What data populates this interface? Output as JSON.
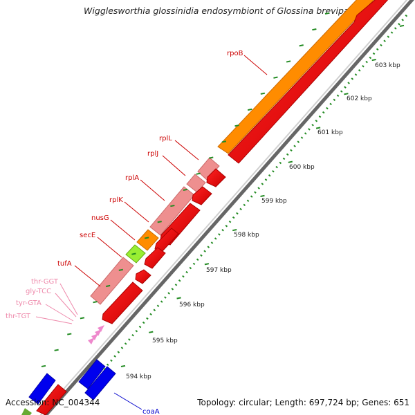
{
  "title": "Wigglesworthia glossinidia endosymbiont of Glossina brevipal...",
  "footer": {
    "accession_label": "Accession:",
    "accession": "NC_004344",
    "topology_label": "Topology:",
    "topology": "circular",
    "length_label": "Length:",
    "length": "697,724 bp",
    "genes_label": "Genes:",
    "genes": "651"
  },
  "scale_labels": [
    "594 kbp",
    "595 kbp",
    "596 kbp",
    "597 kbp",
    "598 kbp",
    "599 kbp",
    "600 kbp",
    "601 kbp",
    "602 kbp",
    "603 kbp"
  ],
  "gene_labels": [
    {
      "name": "rpoB",
      "color": "#cc0000"
    },
    {
      "name": "rplL",
      "color": "#cc0000"
    },
    {
      "name": "rplJ",
      "color": "#cc0000"
    },
    {
      "name": "rplA",
      "color": "#cc0000"
    },
    {
      "name": "rplK",
      "color": "#cc0000"
    },
    {
      "name": "nusG",
      "color": "#cc0000"
    },
    {
      "name": "secE",
      "color": "#cc0000"
    },
    {
      "name": "tufA",
      "color": "#cc0000"
    },
    {
      "name": "thr-GGT",
      "color": "#ee88aa"
    },
    {
      "name": "gly-TCC",
      "color": "#ee88aa"
    },
    {
      "name": "tyr-GTA",
      "color": "#ee88aa"
    },
    {
      "name": "thr-TGT",
      "color": "#ee88aa"
    },
    {
      "name": "coaA",
      "color": "#0000cc"
    }
  ],
  "colors": {
    "cds": "#ff0000",
    "rrna_light": "#ee8f8f",
    "orange": "#ff8c00",
    "lime": "#99ee33",
    "blue": "#0000ee",
    "trna": "#ee88cc",
    "backbone": "#888888",
    "tick": "#228b22"
  }
}
